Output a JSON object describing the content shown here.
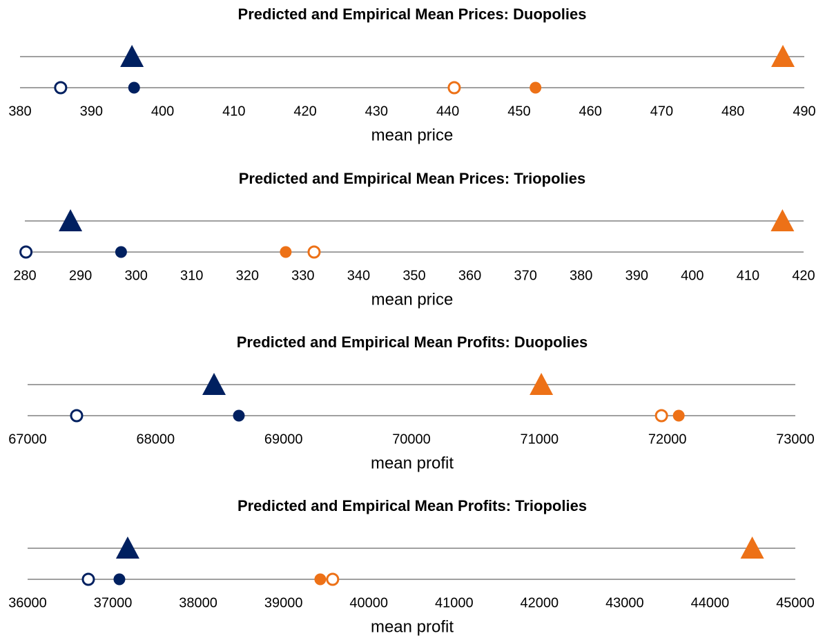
{
  "chart_data": [
    {
      "type": "dot",
      "title": "Predicted and Empirical Mean Prices: Duopolies",
      "x_label": "mean price",
      "xlim": [
        380,
        490
      ],
      "xticks": [
        380,
        390,
        400,
        410,
        420,
        430,
        440,
        450,
        460,
        470,
        480,
        490
      ],
      "series": [
        {
          "color": "#002060",
          "marker": "triangle",
          "filled": true,
          "values": [
            395.7
          ]
        },
        {
          "color": "#ed7117",
          "marker": "triangle",
          "filled": true,
          "values": [
            487.0
          ]
        },
        {
          "color": "#002060",
          "marker": "circle",
          "filled": false,
          "values": [
            385.7
          ]
        },
        {
          "color": "#002060",
          "marker": "circle",
          "filled": true,
          "values": [
            396.0
          ]
        },
        {
          "color": "#ed7117",
          "marker": "circle",
          "filled": false,
          "values": [
            440.9
          ]
        },
        {
          "color": "#ed7117",
          "marker": "circle",
          "filled": true,
          "values": [
            452.3
          ]
        }
      ]
    },
    {
      "type": "dot",
      "title": "Predicted and Empirical Mean Prices: Triopolies",
      "x_label": "mean price",
      "xlim": [
        280,
        420
      ],
      "xticks": [
        280,
        290,
        300,
        310,
        320,
        330,
        340,
        350,
        360,
        370,
        380,
        390,
        400,
        410,
        420
      ],
      "series": [
        {
          "color": "#002060",
          "marker": "triangle",
          "filled": true,
          "values": [
            288.2
          ]
        },
        {
          "color": "#ed7117",
          "marker": "triangle",
          "filled": true,
          "values": [
            416.2
          ]
        },
        {
          "color": "#002060",
          "marker": "circle",
          "filled": false,
          "values": [
            280.2
          ]
        },
        {
          "color": "#002060",
          "marker": "circle",
          "filled": true,
          "values": [
            297.3
          ]
        },
        {
          "color": "#ed7117",
          "marker": "circle",
          "filled": false,
          "values": [
            332.0
          ]
        },
        {
          "color": "#ed7117",
          "marker": "circle",
          "filled": true,
          "values": [
            326.9
          ]
        }
      ]
    },
    {
      "type": "dot",
      "title": "Predicted and Empirical Mean Profits: Duopolies",
      "x_label": "mean profit",
      "xlim": [
        67000,
        73000
      ],
      "xticks": [
        67000,
        68000,
        69000,
        70000,
        71000,
        72000,
        73000
      ],
      "series": [
        {
          "color": "#002060",
          "marker": "triangle",
          "filled": true,
          "values": [
            68457
          ]
        },
        {
          "color": "#ed7117",
          "marker": "triangle",
          "filled": true,
          "values": [
            71015
          ]
        },
        {
          "color": "#002060",
          "marker": "circle",
          "filled": false,
          "values": [
            67383
          ]
        },
        {
          "color": "#002060",
          "marker": "circle",
          "filled": true,
          "values": [
            68651
          ]
        },
        {
          "color": "#ed7117",
          "marker": "circle",
          "filled": false,
          "values": [
            71954
          ]
        },
        {
          "color": "#ed7117",
          "marker": "circle",
          "filled": true,
          "values": [
            72089
          ]
        }
      ]
    },
    {
      "type": "dot",
      "title": "Predicted and Empirical Mean Profits: Triopolies",
      "x_label": "mean profit",
      "xlim": [
        36000,
        45000
      ],
      "xticks": [
        36000,
        37000,
        38000,
        39000,
        40000,
        41000,
        42000,
        43000,
        44000,
        45000
      ],
      "series": [
        {
          "color": "#002060",
          "marker": "triangle",
          "filled": true,
          "values": [
            37173
          ]
        },
        {
          "color": "#ed7117",
          "marker": "triangle",
          "filled": true,
          "values": [
            44495
          ]
        },
        {
          "color": "#002060",
          "marker": "circle",
          "filled": false,
          "values": [
            36712
          ]
        },
        {
          "color": "#002060",
          "marker": "circle",
          "filled": true,
          "values": [
            37076
          ]
        },
        {
          "color": "#ed7117",
          "marker": "circle",
          "filled": false,
          "values": [
            39576
          ]
        },
        {
          "color": "#ed7117",
          "marker": "circle",
          "filled": true,
          "values": [
            39431
          ]
        }
      ]
    }
  ]
}
